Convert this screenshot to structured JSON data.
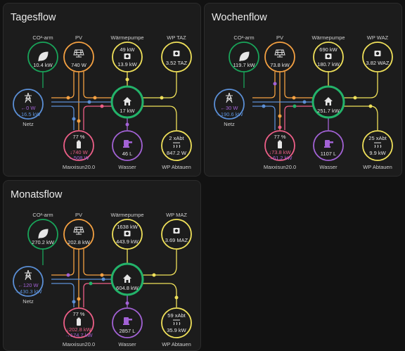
{
  "colors": {
    "grid": "#5b8fd6",
    "solar": "#f5a142",
    "battery": "#ee5f88",
    "home": "#23b36a",
    "co2": "#19a55a",
    "heatpump": "#f0e15a",
    "water": "#a261cf",
    "bat_out": "#a362d6",
    "bg_card": "#1c1c1c"
  },
  "cards": [
    {
      "title": "Tagesflow",
      "nodes": {
        "co2": {
          "label": "CO²-arm",
          "value": "10.4 kW"
        },
        "pv": {
          "label": "PV",
          "value": "740 W"
        },
        "heatpump": {
          "label": "Wärmepumpe",
          "top_value": "49 kW",
          "bottom_value": "13.9 kW"
        },
        "wp_extra": {
          "label": "WP TAZ",
          "value": "3.52 TAZ"
        },
        "grid": {
          "label": "Netz",
          "out_value": "←0 W",
          "in_value": "→16.5 kW"
        },
        "home": {
          "value": "17 kW"
        },
        "battery": {
          "label": "Maxxisun20.0",
          "percent": "77 %",
          "out_value": "↓740 W",
          "in_value": "→508 W"
        },
        "water": {
          "label": "Wasser",
          "value": "46 L"
        },
        "defrost": {
          "label": "WP Abtauen",
          "top_value": "2 xAbt",
          "bottom_value": "847.2 W"
        }
      }
    },
    {
      "title": "Wochenflow",
      "nodes": {
        "co2": {
          "label": "CO²-arm",
          "value": "119.7 kW"
        },
        "pv": {
          "label": "PV",
          "value": "73.8 kW"
        },
        "heatpump": {
          "label": "Wärmepumpe",
          "top_value": "690 kW",
          "bottom_value": "180.7 kW"
        },
        "wp_extra": {
          "label": "WP WAZ",
          "value": "3.82 WAZ"
        },
        "grid": {
          "label": "Netz",
          "out_value": "←30 W",
          "in_value": "→190.6 kW"
        },
        "home": {
          "value": "251.7 kW"
        },
        "battery": {
          "label": "Maxxisun20.0",
          "percent": "77 %",
          "out_value": "↓73.8 kW",
          "in_value": "→61.2 kW"
        },
        "water": {
          "label": "Wasser",
          "value": "1107 L"
        },
        "defrost": {
          "label": "WP Abtauen",
          "top_value": "25 xAbt",
          "bottom_value": "9.9 kW"
        }
      }
    },
    {
      "title": "Monatsflow",
      "nodes": {
        "co2": {
          "label": "CO²-arm",
          "value": "270.2 kW"
        },
        "pv": {
          "label": "PV",
          "value": "202.8 kW"
        },
        "heatpump": {
          "label": "Wärmepumpe",
          "top_value": "1638 kW",
          "bottom_value": "443.9 kW"
        },
        "wp_extra": {
          "label": "WP MAZ",
          "value": "3.69 MAZ"
        },
        "grid": {
          "label": "Netz",
          "out_value": "←120 W",
          "in_value": "→430.3 kW"
        },
        "home": {
          "value": "604.8 kW"
        },
        "battery": {
          "label": "Maxxisun20.0",
          "percent": "77 %",
          "out_value": "↓202.8 kW",
          "in_value": "→174.7 kW"
        },
        "water": {
          "label": "Wasser",
          "value": "2857 L"
        },
        "defrost": {
          "label": "WP Abtauen",
          "top_value": "59 xAbt",
          "bottom_value": "35.9 kW"
        }
      }
    }
  ]
}
